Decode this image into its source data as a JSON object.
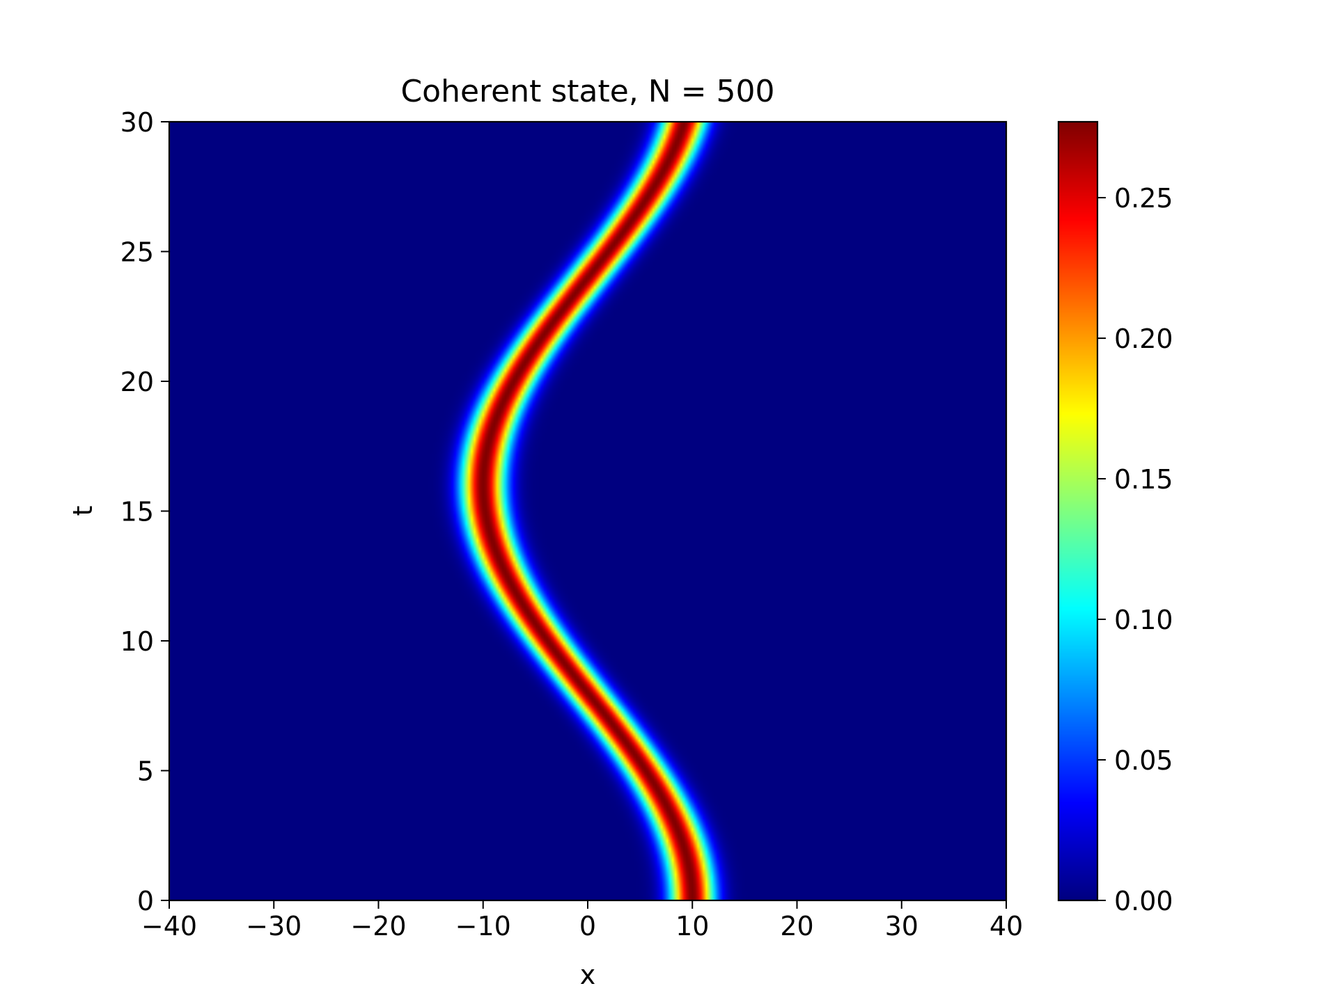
{
  "chart_data": {
    "type": "heatmap",
    "title": "Coherent state, N = 500",
    "xlabel": "x",
    "ylabel": "t",
    "xlim": [
      -40,
      40
    ],
    "ylim": [
      0,
      30
    ],
    "x_ticks": [
      -40,
      -30,
      -20,
      -10,
      0,
      10,
      20,
      30,
      40
    ],
    "x_tick_labels": [
      "−40",
      "−30",
      "−20",
      "−10",
      "0",
      "10",
      "20",
      "30",
      "40"
    ],
    "y_ticks": [
      0,
      5,
      10,
      15,
      20,
      25,
      30
    ],
    "y_tick_labels": [
      "0",
      "5",
      "10",
      "15",
      "20",
      "25",
      "30"
    ],
    "colormap": "jet",
    "colorbar": {
      "vmin": 0.0,
      "vmax": 0.277,
      "ticks": [
        0.0,
        0.05,
        0.1,
        0.15,
        0.2,
        0.25
      ],
      "tick_labels": [
        "0.00",
        "0.05",
        "0.10",
        "0.15",
        "0.20",
        "0.25"
      ]
    },
    "field": {
      "description_of_values": "probability density |psi(x,t)|^2 of an oscillating gaussian packet",
      "center_x_of_t": {
        "amplitude": 10.0,
        "period": 32.0,
        "phase_at_t0": 0.0
      },
      "peak_value": 0.277,
      "gaussian_sigma": 1.44
    },
    "grid": false
  }
}
